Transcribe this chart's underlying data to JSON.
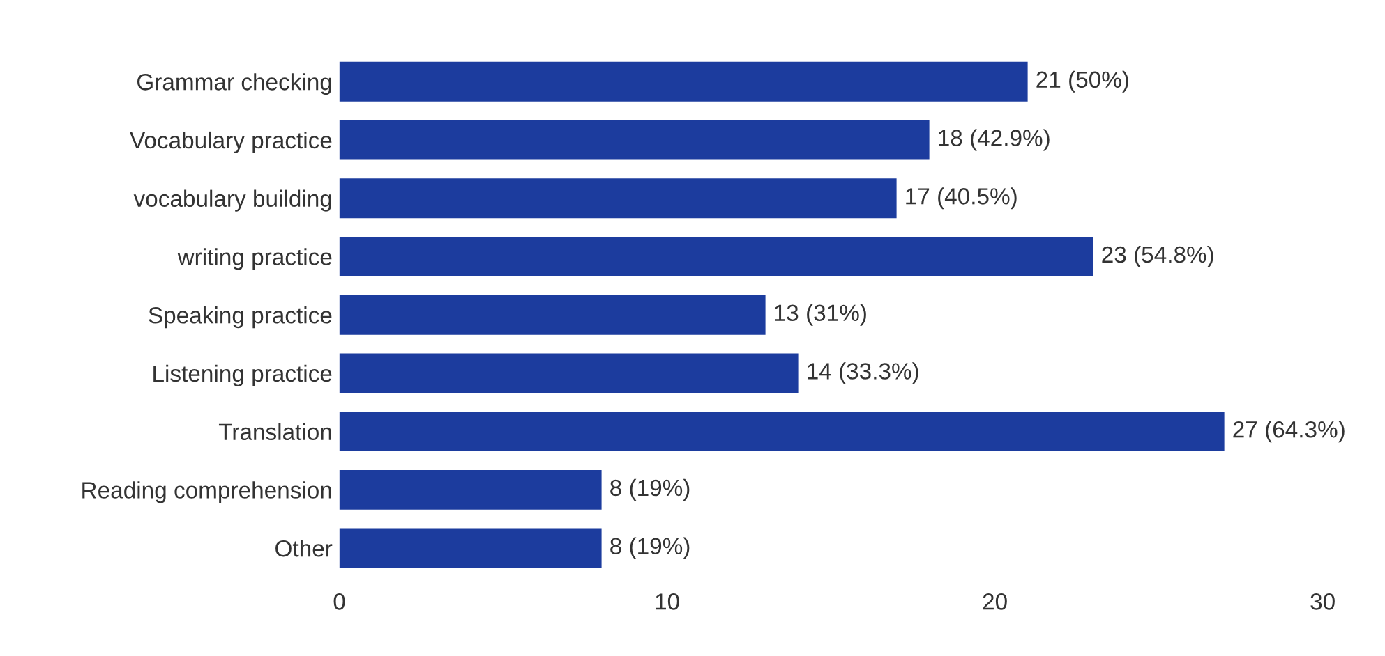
{
  "chart_data": {
    "type": "bar",
    "orientation": "horizontal",
    "categories": [
      "Grammar checking",
      "Vocabulary practice",
      "vocabulary building",
      "writing practice",
      "Speaking practice",
      "Listening practice",
      "Translation",
      "Reading comprehension",
      "Other"
    ],
    "values": [
      21,
      18,
      17,
      23,
      13,
      14,
      27,
      8,
      8
    ],
    "value_labels": [
      "21 (50%)",
      "18 (42.9%)",
      "17 (40.5%)",
      "23 (54.8%)",
      "13 (31%)",
      "14 (33.3%)",
      "27 (64.3%)",
      "8 (19%)",
      "8 (19%)"
    ],
    "color": "#1c3c9e",
    "xlim": [
      0,
      30
    ],
    "xticks": [
      0,
      10,
      20,
      30
    ],
    "grid": false,
    "legend": false
  }
}
